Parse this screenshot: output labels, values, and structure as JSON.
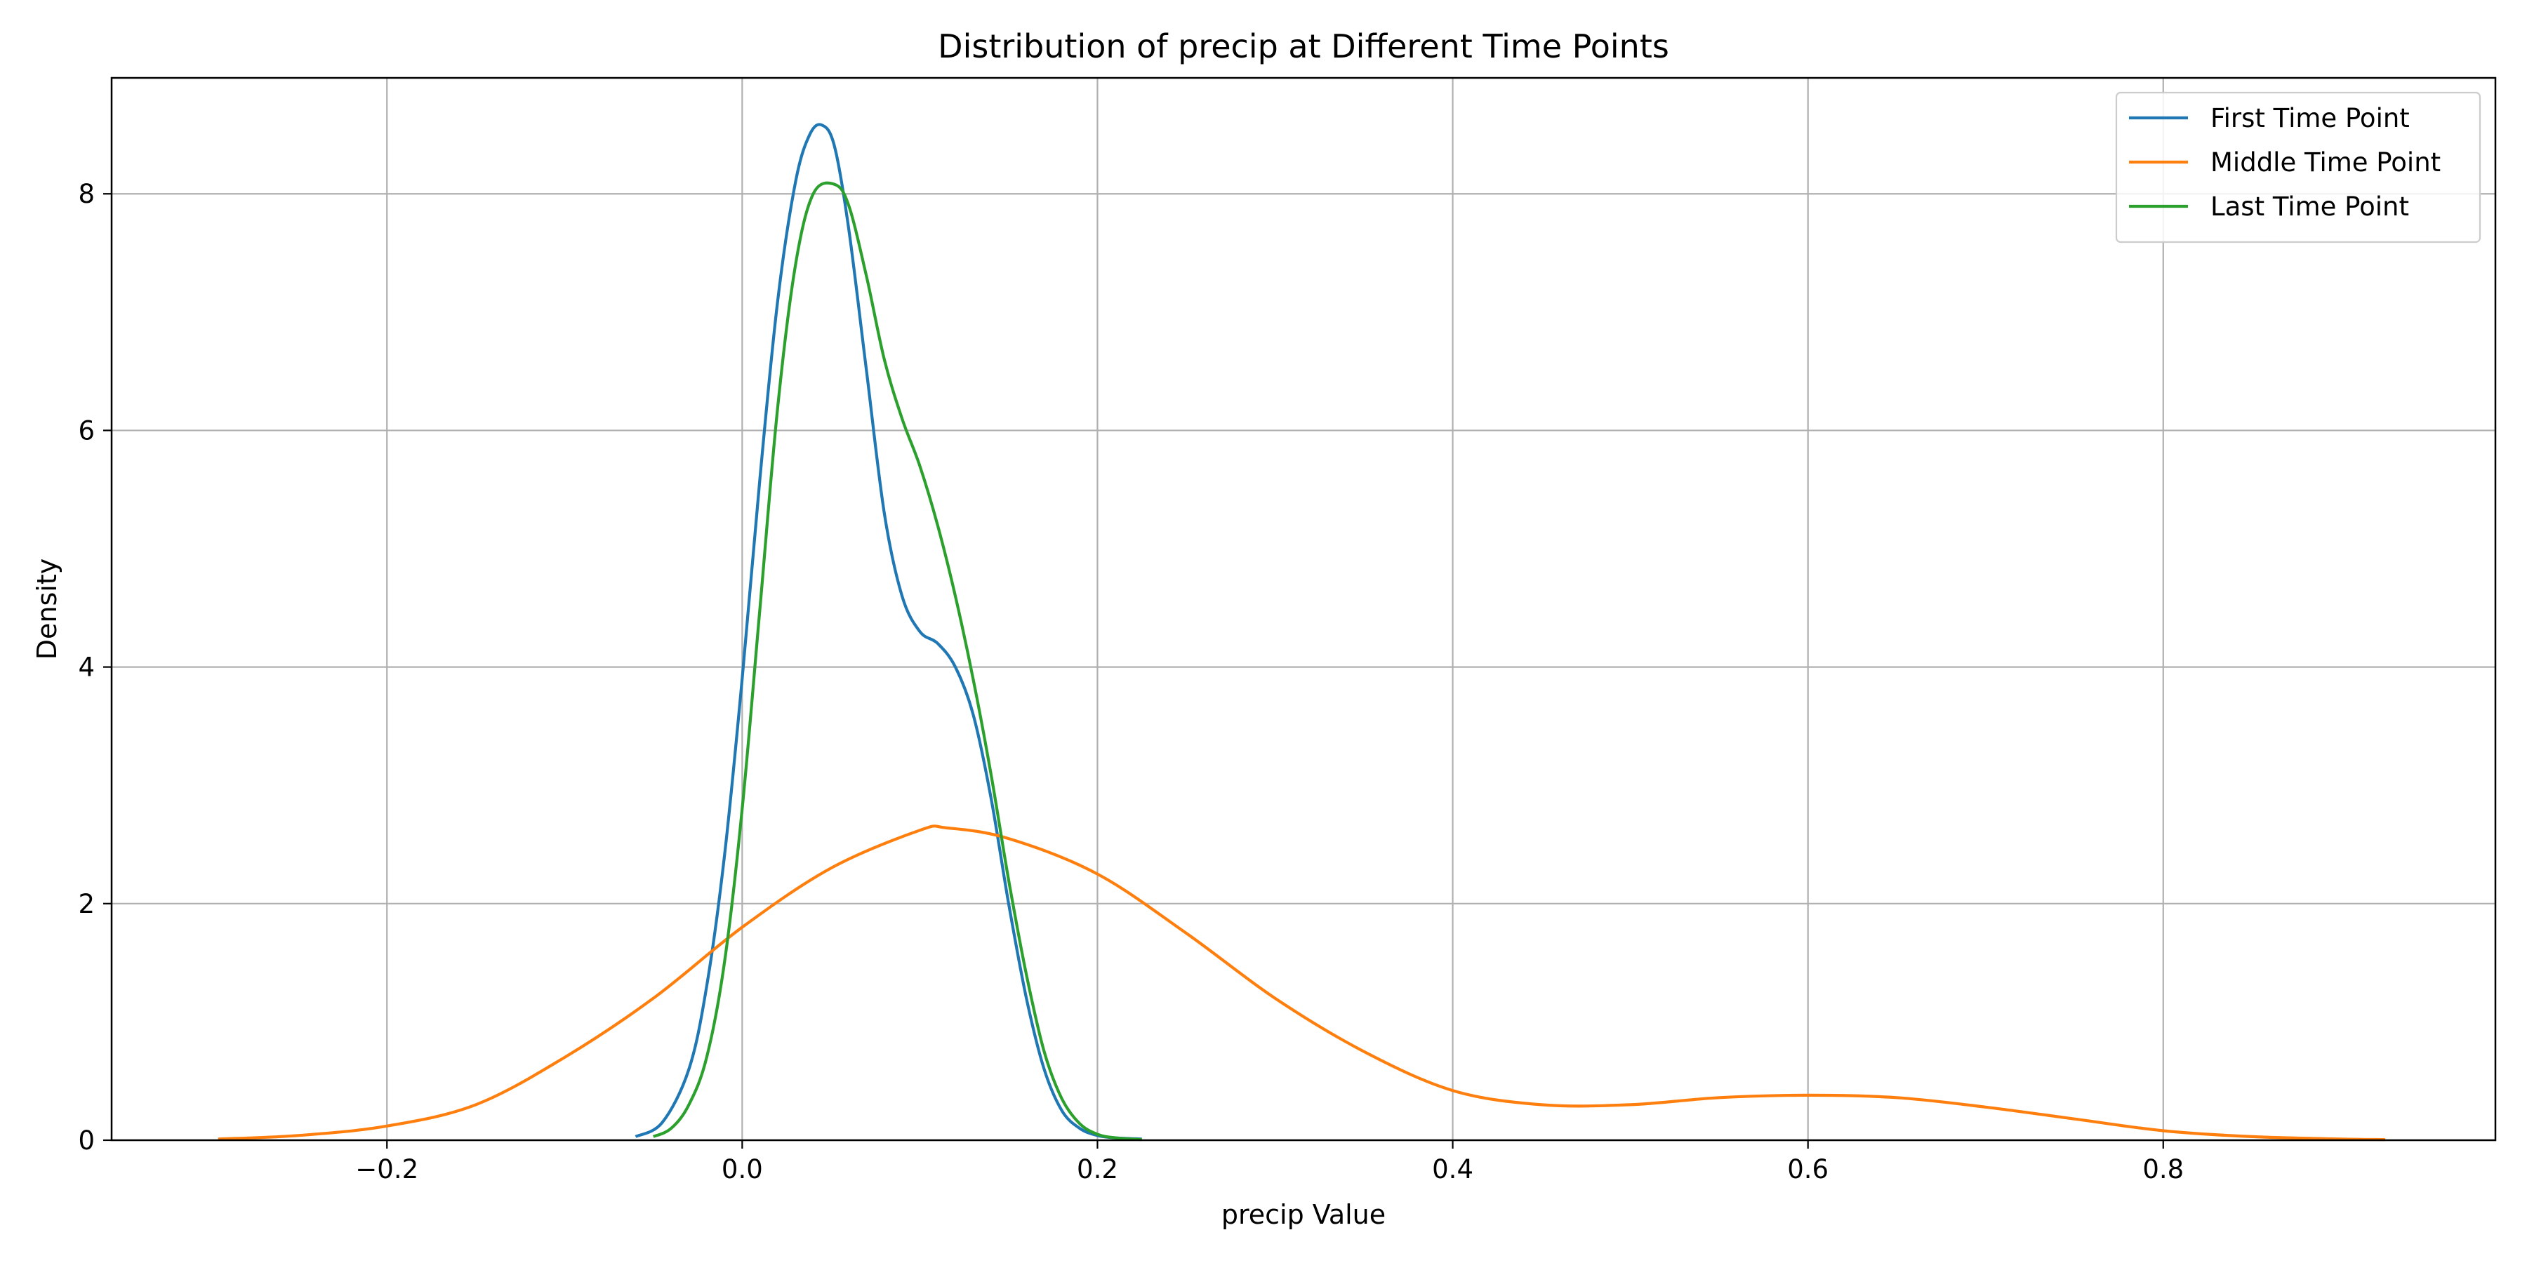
{
  "chart_data": {
    "type": "line",
    "title": "Distribution of precip at Different Time Points",
    "xlabel": "precip Value",
    "ylabel": "Density",
    "xlim": [
      -0.355,
      0.987
    ],
    "ylim": [
      0,
      8.98
    ],
    "xticks": [
      -0.2,
      0.0,
      0.2,
      0.4,
      0.6,
      0.8
    ],
    "xtick_labels": [
      "−0.2",
      "0.0",
      "0.2",
      "0.4",
      "0.6",
      "0.8"
    ],
    "yticks": [
      0,
      2,
      4,
      6,
      8
    ],
    "ytick_labels": [
      "0",
      "2",
      "4",
      "6",
      "8"
    ],
    "grid": true,
    "legend_position": "top-right",
    "series": [
      {
        "name": "First Time Point",
        "color": "#1f77b4",
        "x": [
          -0.06,
          -0.045,
          -0.03,
          -0.02,
          -0.01,
          0.0,
          0.01,
          0.02,
          0.03,
          0.038,
          0.045,
          0.052,
          0.06,
          0.07,
          0.08,
          0.09,
          0.1,
          0.11,
          0.12,
          0.13,
          0.14,
          0.15,
          0.16,
          0.17,
          0.18,
          0.19,
          0.2,
          0.21,
          0.225
        ],
        "y": [
          0.03,
          0.15,
          0.6,
          1.3,
          2.4,
          3.9,
          5.6,
          7.1,
          8.1,
          8.5,
          8.58,
          8.4,
          7.7,
          6.5,
          5.3,
          4.6,
          4.3,
          4.2,
          4.0,
          3.6,
          2.9,
          2.0,
          1.2,
          0.6,
          0.25,
          0.1,
          0.04,
          0.02,
          0.01
        ]
      },
      {
        "name": "Middle Time Point",
        "color": "#ff7f0e",
        "x": [
          -0.295,
          -0.25,
          -0.2,
          -0.15,
          -0.1,
          -0.05,
          0.0,
          0.05,
          0.1,
          0.115,
          0.15,
          0.2,
          0.25,
          0.3,
          0.35,
          0.4,
          0.45,
          0.5,
          0.55,
          0.6,
          0.65,
          0.7,
          0.75,
          0.8,
          0.85,
          0.9,
          0.925
        ],
        "y": [
          0.01,
          0.04,
          0.12,
          0.3,
          0.7,
          1.2,
          1.8,
          2.3,
          2.62,
          2.64,
          2.55,
          2.25,
          1.75,
          1.2,
          0.75,
          0.42,
          0.3,
          0.3,
          0.36,
          0.38,
          0.36,
          0.28,
          0.18,
          0.08,
          0.03,
          0.01,
          0.005
        ]
      },
      {
        "name": "Last Time Point",
        "color": "#2ca02c",
        "x": [
          -0.05,
          -0.04,
          -0.03,
          -0.02,
          -0.01,
          0.0,
          0.01,
          0.02,
          0.03,
          0.04,
          0.052,
          0.06,
          0.07,
          0.08,
          0.09,
          0.1,
          0.11,
          0.12,
          0.13,
          0.14,
          0.15,
          0.16,
          0.17,
          0.18,
          0.19,
          0.2,
          0.21,
          0.225
        ],
        "y": [
          0.03,
          0.1,
          0.3,
          0.7,
          1.5,
          2.8,
          4.5,
          6.2,
          7.4,
          8.0,
          8.08,
          7.9,
          7.3,
          6.6,
          6.1,
          5.7,
          5.2,
          4.6,
          3.9,
          3.1,
          2.2,
          1.4,
          0.75,
          0.35,
          0.14,
          0.05,
          0.02,
          0.005
        ]
      }
    ]
  }
}
